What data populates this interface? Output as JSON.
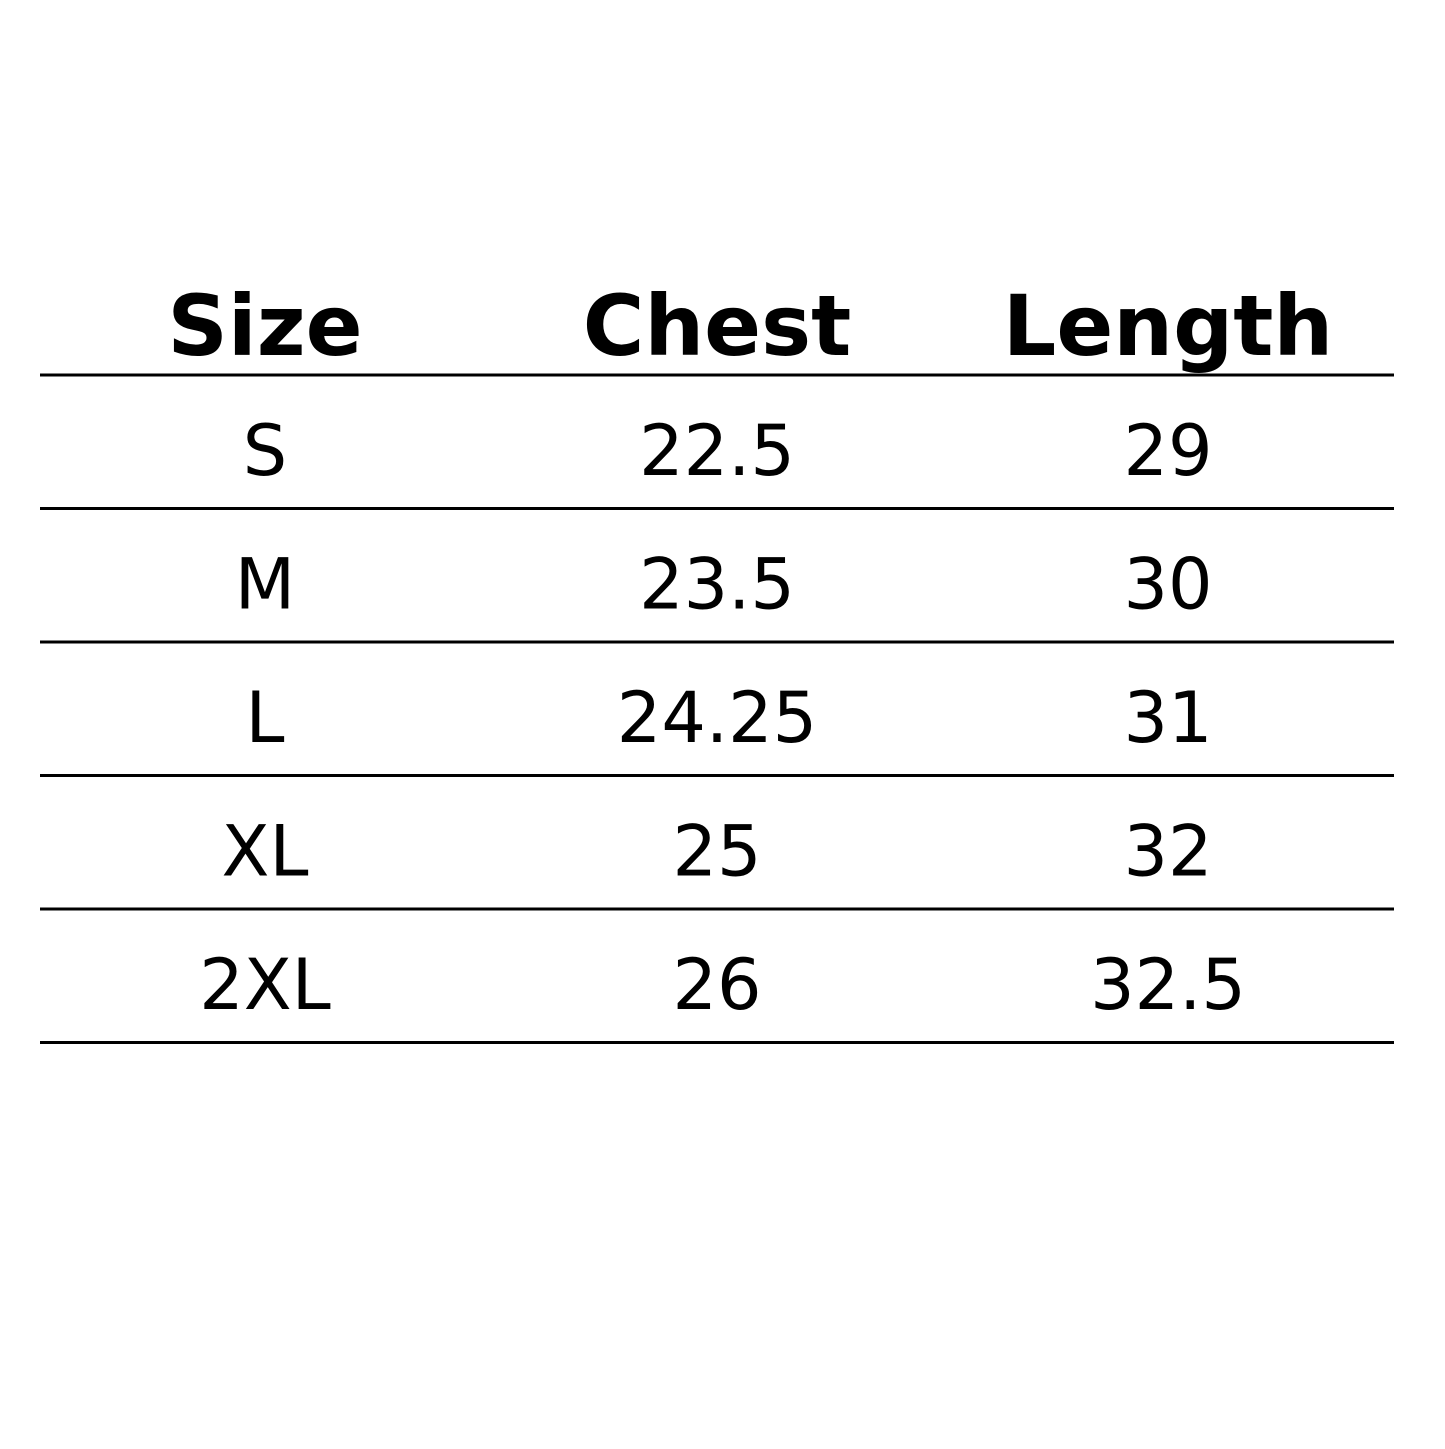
{
  "table": {
    "header": [
      "Size",
      "Chest",
      "Length"
    ],
    "rows": [
      [
        "S",
        "22.5",
        "29"
      ],
      [
        "M",
        "23.5",
        "30"
      ],
      [
        "L",
        "24.25",
        "31"
      ],
      [
        "XL",
        "25",
        "32"
      ],
      [
        "2XL",
        "26",
        "32.5"
      ]
    ]
  }
}
